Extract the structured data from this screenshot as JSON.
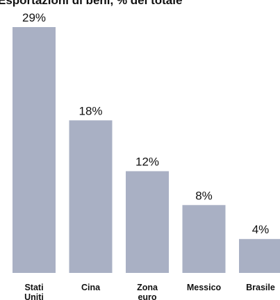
{
  "chart_data": {
    "type": "bar",
    "title": "Esportazioni di beni, % del totale",
    "categories": [
      [
        "Stati",
        "Uniti"
      ],
      [
        "Cina"
      ],
      [
        "Zona",
        "euro"
      ],
      [
        "Messico"
      ],
      [
        "Brasile"
      ]
    ],
    "values": [
      29,
      18,
      12,
      8,
      4
    ],
    "value_labels": [
      "29%",
      "18%",
      "12%",
      "8%",
      "4%"
    ],
    "ylim": [
      0,
      29
    ],
    "grid": false,
    "bar_color": "#a9b0c4"
  }
}
